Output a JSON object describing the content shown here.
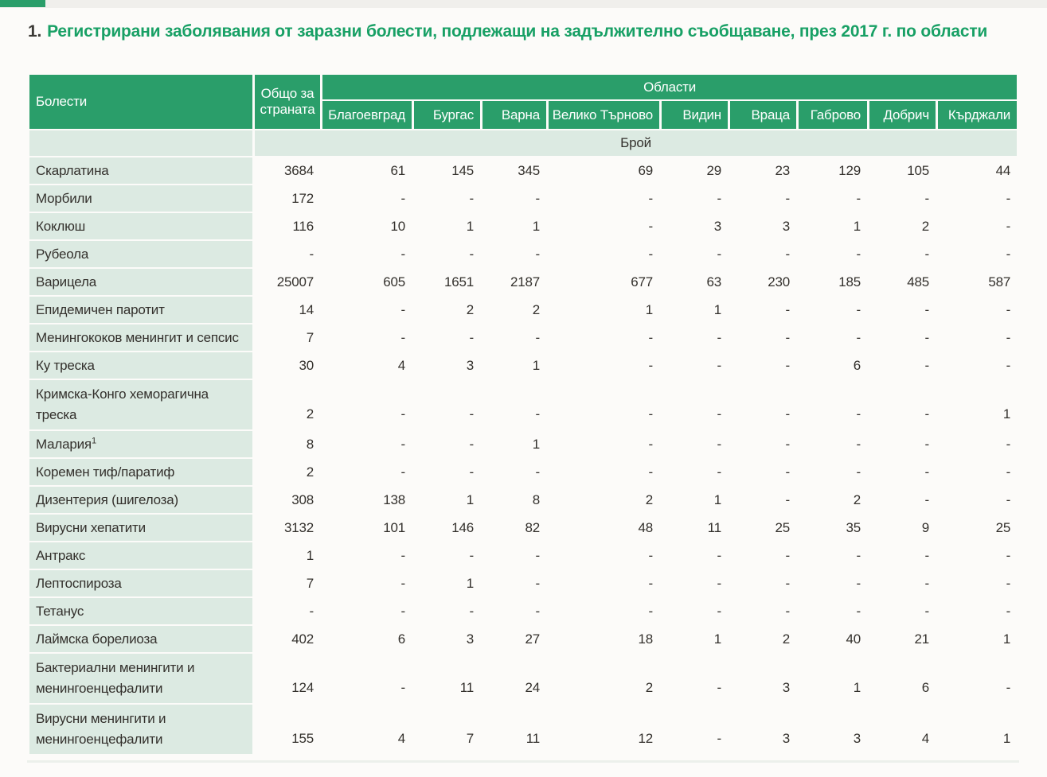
{
  "page": {
    "title_number": "1.",
    "title": "Регистрирани заболявания от заразни болести, подлежащи на задължително съобщаване, през 2017 г. по области"
  },
  "colors": {
    "accent_green": "#2A9E6A",
    "title_green": "#18A065",
    "light_green": "#DCEAE2",
    "text": "#33302C"
  },
  "table": {
    "col1_header": "Болести",
    "total_header": "Общо за страната",
    "regions_group_header": "Области",
    "unit_row_label": "Брой",
    "region_headers": [
      "Благоевград",
      "Бургас",
      "Варна",
      "Велико Търново",
      "Видин",
      "Враца",
      "Габрово",
      "Добрич",
      "Кърджали"
    ],
    "rows": [
      {
        "name": "Скарлатина",
        "values": [
          "3684",
          "61",
          "145",
          "345",
          "69",
          "29",
          "23",
          "129",
          "105",
          "44"
        ]
      },
      {
        "name": "Морбили",
        "values": [
          "172",
          "-",
          "-",
          "-",
          "-",
          "-",
          "-",
          "-",
          "-",
          "-"
        ]
      },
      {
        "name": "Коклюш",
        "values": [
          "116",
          "10",
          "1",
          "1",
          "-",
          "3",
          "3",
          "1",
          "2",
          "-"
        ]
      },
      {
        "name": "Рубеола",
        "values": [
          "-",
          "-",
          "-",
          "-",
          "-",
          "-",
          "-",
          "-",
          "-",
          "-"
        ]
      },
      {
        "name": "Варицела",
        "values": [
          "25007",
          "605",
          "1651",
          "2187",
          "677",
          "63",
          "230",
          "185",
          "485",
          "587"
        ]
      },
      {
        "name": "Епидемичен паротит",
        "values": [
          "14",
          "-",
          "2",
          "2",
          "1",
          "1",
          "-",
          "-",
          "-",
          "-"
        ]
      },
      {
        "name": "Менингококов менингит и сепсис",
        "values": [
          "7",
          "-",
          "-",
          "-",
          "-",
          "-",
          "-",
          "-",
          "-",
          "-"
        ]
      },
      {
        "name": "Ку треска",
        "values": [
          "30",
          "4",
          "3",
          "1",
          "-",
          "-",
          "-",
          "6",
          "-",
          "-"
        ]
      },
      {
        "name": "Кримска-Конго хеморагична треска",
        "tall": true,
        "values": [
          "2",
          "-",
          "-",
          "-",
          "-",
          "-",
          "-",
          "-",
          "-",
          "1"
        ]
      },
      {
        "name": "Малария",
        "sup": "1",
        "values": [
          "8",
          "-",
          "-",
          "1",
          "-",
          "-",
          "-",
          "-",
          "-",
          "-"
        ]
      },
      {
        "name": "Коремен тиф/паратиф",
        "values": [
          "2",
          "-",
          "-",
          "-",
          "-",
          "-",
          "-",
          "-",
          "-",
          "-"
        ]
      },
      {
        "name": "Дизентерия (шигелоза)",
        "values": [
          "308",
          "138",
          "1",
          "8",
          "2",
          "1",
          "-",
          "2",
          "-",
          "-"
        ]
      },
      {
        "name": "Вирусни хепатити",
        "values": [
          "3132",
          "101",
          "146",
          "82",
          "48",
          "11",
          "25",
          "35",
          "9",
          "25"
        ]
      },
      {
        "name": "Антракс",
        "values": [
          "1",
          "-",
          "-",
          "-",
          "-",
          "-",
          "-",
          "-",
          "-",
          "-"
        ]
      },
      {
        "name": "Лептоспироза",
        "values": [
          "7",
          "-",
          "1",
          "-",
          "-",
          "-",
          "-",
          "-",
          "-",
          "-"
        ]
      },
      {
        "name": "Тетанус",
        "values": [
          "-",
          "-",
          "-",
          "-",
          "-",
          "-",
          "-",
          "-",
          "-",
          "-"
        ]
      },
      {
        "name": "Лаймска борелиоза",
        "values": [
          "402",
          "6",
          "3",
          "27",
          "18",
          "1",
          "2",
          "40",
          "21",
          "1"
        ]
      },
      {
        "name": "Бактериални менингити и менингоенцефалити",
        "tall": true,
        "values": [
          "124",
          "-",
          "11",
          "24",
          "2",
          "-",
          "3",
          "1",
          "6",
          "-"
        ]
      },
      {
        "name": "Вирусни менингити и менингоенцефалити",
        "tall": true,
        "values": [
          "155",
          "4",
          "7",
          "11",
          "12",
          "-",
          "3",
          "3",
          "4",
          "1"
        ]
      }
    ]
  }
}
